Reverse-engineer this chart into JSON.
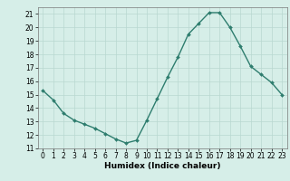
{
  "x": [
    0,
    1,
    2,
    3,
    4,
    5,
    6,
    7,
    8,
    9,
    10,
    11,
    12,
    13,
    14,
    15,
    16,
    17,
    18,
    19,
    20,
    21,
    22,
    23
  ],
  "y": [
    15.3,
    14.6,
    13.6,
    13.1,
    12.8,
    12.5,
    12.1,
    11.7,
    11.4,
    11.6,
    13.1,
    14.7,
    16.3,
    17.8,
    19.5,
    20.3,
    21.1,
    21.1,
    20.0,
    18.6,
    17.1,
    16.5,
    15.9,
    15.0
  ],
  "line_color": "#2e7d6e",
  "marker": "D",
  "marker_size": 2.0,
  "line_width": 1.0,
  "xlabel": "Humidex (Indice chaleur)",
  "xlim": [
    -0.5,
    23.5
  ],
  "ylim": [
    11,
    21.5
  ],
  "yticks": [
    11,
    12,
    13,
    14,
    15,
    16,
    17,
    18,
    19,
    20,
    21
  ],
  "xticks": [
    0,
    1,
    2,
    3,
    4,
    5,
    6,
    7,
    8,
    9,
    10,
    11,
    12,
    13,
    14,
    15,
    16,
    17,
    18,
    19,
    20,
    21,
    22,
    23
  ],
  "background_color": "#d6eee8",
  "grid_color": "#b8d8d0",
  "tick_fontsize": 5.5,
  "xlabel_fontsize": 6.5
}
